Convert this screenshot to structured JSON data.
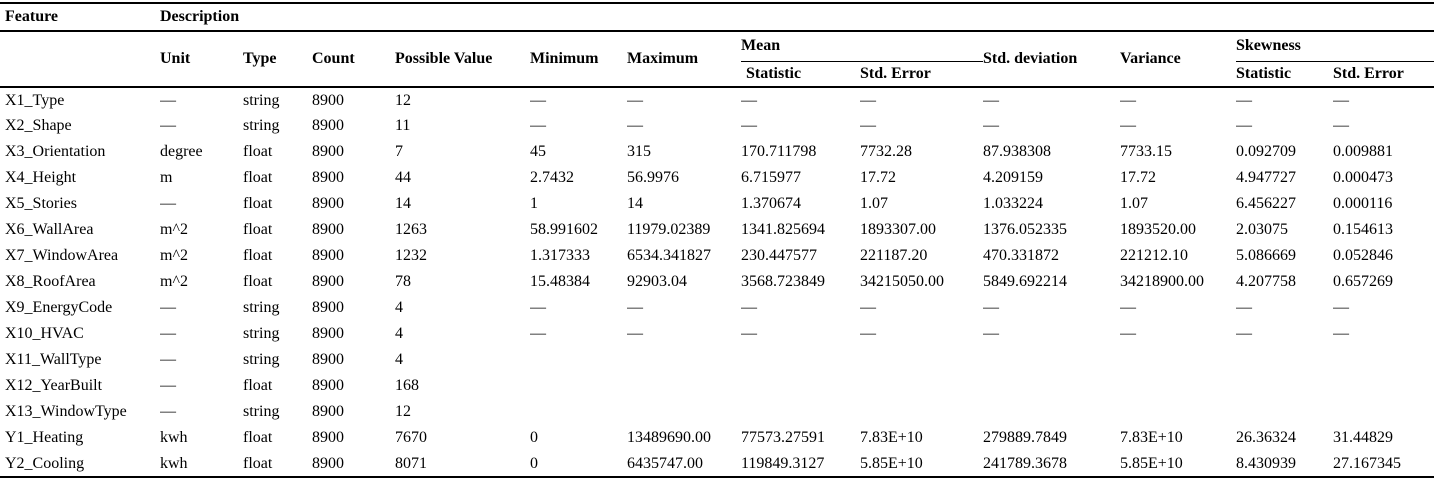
{
  "table": {
    "header": {
      "feature": "Feature",
      "description": "Description",
      "unit": "Unit",
      "type": "Type",
      "count": "Count",
      "possible_value": "Possible Value",
      "minimum": "Minimum",
      "maximum": "Maximum",
      "mean": "Mean",
      "mean_statistic": "Statistic",
      "mean_std_error": "Std. Error",
      "std_deviation": "Std. deviation",
      "variance": "Variance",
      "skewness": "Skewness",
      "skewness_statistic": "Statistic",
      "skewness_std_error": "Std. Error"
    },
    "column_keys": [
      "feature",
      "unit",
      "type",
      "count",
      "possible-value",
      "minimum",
      "maximum",
      "mean-statistic",
      "mean-std-error",
      "std-deviation",
      "variance",
      "skewness-statistic",
      "skewness-std-error"
    ],
    "rows": [
      [
        "X1_Type",
        "—",
        "string",
        "8900",
        "12",
        "—",
        "—",
        "—",
        "—",
        "—",
        "—",
        "—",
        "—"
      ],
      [
        "X2_Shape",
        "—",
        "string",
        "8900",
        "11",
        "—",
        "—",
        "—",
        "—",
        "—",
        "—",
        "—",
        "—"
      ],
      [
        "X3_Orientation",
        "degree",
        "float",
        "8900",
        "7",
        "45",
        "315",
        "170.711798",
        "7732.28",
        "87.938308",
        "7733.15",
        "0.092709",
        "0.009881"
      ],
      [
        "X4_Height",
        "m",
        "float",
        "8900",
        "44",
        "2.7432",
        "56.9976",
        "6.715977",
        "17.72",
        "4.209159",
        "17.72",
        "4.947727",
        "0.000473"
      ],
      [
        "X5_Stories",
        "—",
        "float",
        "8900",
        "14",
        "1",
        "14",
        "1.370674",
        "1.07",
        "1.033224",
        "1.07",
        "6.456227",
        "0.000116"
      ],
      [
        "X6_WallArea",
        "m^2",
        "float",
        "8900",
        "1263",
        "58.991602",
        "11979.02389",
        "1341.825694",
        "1893307.00",
        "1376.052335",
        "1893520.00",
        "2.03075",
        "0.154613"
      ],
      [
        "X7_WindowArea",
        "m^2",
        "float",
        "8900",
        "1232",
        "1.317333",
        "6534.341827",
        "230.447577",
        "221187.20",
        "470.331872",
        "221212.10",
        "5.086669",
        "0.052846"
      ],
      [
        "X8_RoofArea",
        "m^2",
        "float",
        "8900",
        "78",
        "15.48384",
        "92903.04",
        "3568.723849",
        "34215050.00",
        "5849.692214",
        "34218900.00",
        "4.207758",
        "0.657269"
      ],
      [
        "X9_EnergyCode",
        "—",
        "string",
        "8900",
        "4",
        "—",
        "—",
        "—",
        "—",
        "—",
        "—",
        "—",
        "—"
      ],
      [
        "X10_HVAC",
        "—",
        "string",
        "8900",
        "4",
        "—",
        "—",
        "—",
        "—",
        "—",
        "—",
        "—",
        "—"
      ],
      [
        "X11_WallType",
        "—",
        "string",
        "8900",
        "4",
        "",
        "",
        "",
        "",
        "",
        "",
        "",
        ""
      ],
      [
        "X12_YearBuilt",
        "—",
        "float",
        "8900",
        "168",
        "",
        "",
        "",
        "",
        "",
        "",
        "",
        ""
      ],
      [
        "X13_WindowType",
        "—",
        "string",
        "8900",
        "12",
        "",
        "",
        "",
        "",
        "",
        "",
        "",
        ""
      ],
      [
        "Y1_Heating",
        "kwh",
        "float",
        "8900",
        "7670",
        "0",
        "13489690.00",
        "77573.27591",
        "7.83E+10",
        "279889.7849",
        "7.83E+10",
        "26.36324",
        "31.44829"
      ],
      [
        "Y2_Cooling",
        "kwh",
        "float",
        "8900",
        "8071",
        "0",
        "6435747.00",
        "119849.3127",
        "5.85E+10",
        "241789.3678",
        "5.85E+10",
        "8.430939",
        "27.167345"
      ]
    ]
  }
}
